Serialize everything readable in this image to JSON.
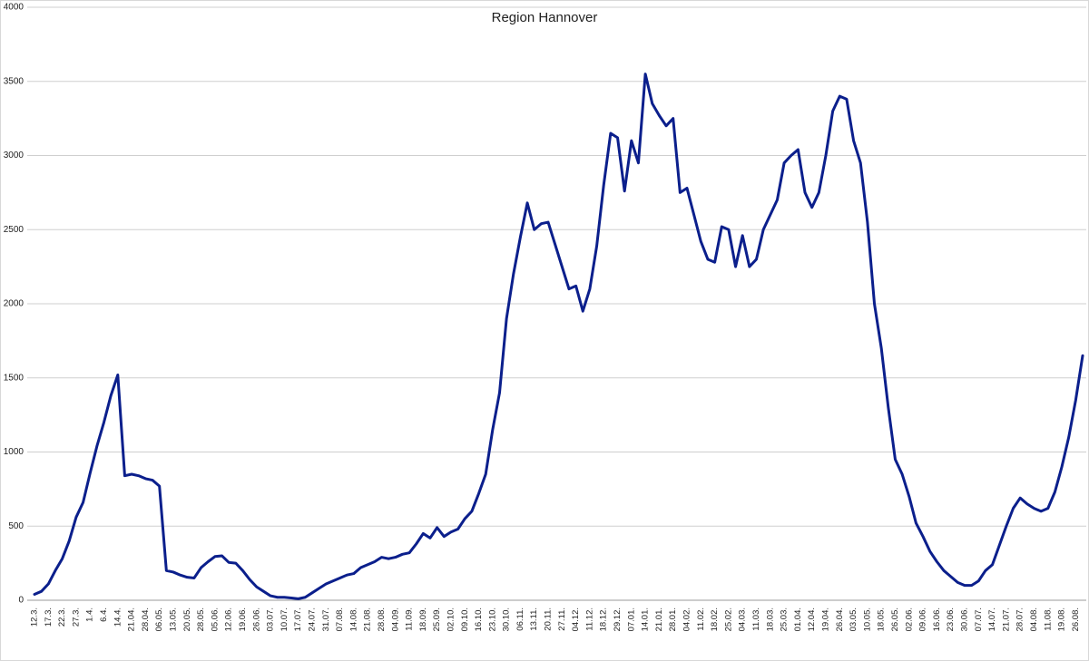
{
  "chart_data": {
    "type": "line",
    "title": "Region Hannover",
    "categories": [
      "12.3.",
      null,
      "17.3.",
      null,
      "22.3.",
      null,
      "27.3.",
      null,
      "1.4.",
      null,
      "6.4.",
      null,
      "14.4.",
      null,
      "21.04.",
      null,
      "28.04.",
      null,
      "06.05.",
      null,
      "13.05.",
      null,
      "20.05.",
      null,
      "28.05.",
      null,
      "05.06.",
      null,
      "12.06.",
      null,
      "19.06.",
      null,
      "26.06.",
      null,
      "03.07.",
      null,
      "10.07.",
      null,
      "17.07.",
      null,
      "24.07.",
      null,
      "31.07.",
      null,
      "07.08.",
      null,
      "14.08.",
      null,
      "21.08.",
      null,
      "28.08.",
      null,
      "04.09.",
      null,
      "11.09.",
      null,
      "18.09.",
      null,
      "25.09.",
      null,
      "02.10.",
      null,
      "09.10.",
      null,
      "16.10.",
      null,
      "23.10.",
      null,
      "30.10.",
      null,
      "06.11.",
      null,
      "13.11.",
      null,
      "20.11.",
      null,
      "27.11.",
      null,
      "04.12.",
      null,
      "11.12.",
      null,
      "18.12.",
      null,
      "29.12.",
      null,
      "07.01.",
      null,
      "14.01.",
      null,
      "21.01.",
      null,
      "28.01.",
      null,
      "04.02.",
      null,
      "11.02.",
      null,
      "18.02.",
      null,
      "25.02.",
      null,
      "04.03.",
      null,
      "11.03.",
      null,
      "18.03.",
      null,
      "25.03.",
      null,
      "01.04.",
      null,
      "12.04.",
      null,
      "19.04.",
      null,
      "26.04.",
      null,
      "03.05.",
      null,
      "10.05.",
      null,
      "18.05.",
      null,
      "26.05.",
      null,
      "02.06.",
      null,
      "09.06.",
      null,
      "16.06.",
      null,
      "23.06.",
      null,
      "30.06.",
      null,
      "07.07.",
      null,
      "14.07.",
      null,
      "21.07.",
      null,
      "28.07.",
      null,
      "04.08.",
      null,
      "11.08.",
      null,
      "19.08.",
      null,
      "26.08.",
      null
    ],
    "series": [
      {
        "color": "#0b1f8c",
        "values": [
          40,
          60,
          110,
          200,
          280,
          400,
          560,
          660,
          855,
          1040,
          1200,
          1380,
          1520,
          840,
          850,
          840,
          820,
          810,
          770,
          200,
          190,
          170,
          155,
          150,
          220,
          260,
          295,
          300,
          255,
          250,
          200,
          140,
          90,
          60,
          30,
          20,
          20,
          15,
          10,
          20,
          50,
          80,
          110,
          130,
          150,
          170,
          180,
          220,
          240,
          260,
          290,
          280,
          290,
          310,
          320,
          380,
          450,
          420,
          490,
          430,
          460,
          480,
          550,
          600,
          720,
          850,
          1150,
          1400,
          1900,
          2200,
          2450,
          2680,
          2500,
          2540,
          2550,
          2400,
          2250,
          2100,
          2120,
          1950,
          2100,
          2390,
          2800,
          3150,
          3120,
          2760,
          3100,
          2950,
          3550,
          3350,
          3270,
          3200,
          3250,
          2750,
          2780,
          2600,
          2420,
          2300,
          2280,
          2520,
          2500,
          2250,
          2460,
          2250,
          2300,
          2500,
          2600,
          2700,
          2950,
          3000,
          3040,
          2750,
          2650,
          2750,
          3000,
          3300,
          3400,
          3380,
          3100,
          2950,
          2550,
          2000,
          1700,
          1300,
          950,
          850,
          700,
          520,
          430,
          330,
          260,
          200,
          160,
          120,
          100,
          100,
          130,
          200,
          240,
          370,
          500,
          620,
          690,
          650,
          620,
          600,
          620,
          730,
          900,
          1100,
          1350,
          1650
        ]
      }
    ],
    "ylim": [
      0,
      4000
    ],
    "yticks": [
      0,
      500,
      1000,
      1500,
      2000,
      2500,
      3000,
      3500,
      4000
    ],
    "grid": true
  }
}
